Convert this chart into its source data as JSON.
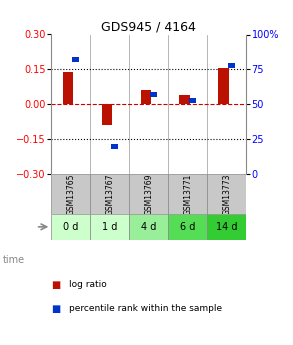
{
  "title": "GDS945 / 4164",
  "samples": [
    "GSM13765",
    "GSM13767",
    "GSM13769",
    "GSM13771",
    "GSM13773"
  ],
  "time_labels": [
    "0 d",
    "1 d",
    "4 d",
    "6 d",
    "14 d"
  ],
  "log_ratio": [
    0.14,
    -0.09,
    0.06,
    0.04,
    0.155
  ],
  "percentile_rank": [
    82,
    20,
    57,
    53,
    78
  ],
  "ylim_left": [
    -0.3,
    0.3
  ],
  "ylim_right": [
    0,
    100
  ],
  "yticks_left": [
    -0.3,
    -0.15,
    0,
    0.15,
    0.3
  ],
  "yticks_right": [
    0,
    25,
    50,
    75,
    100
  ],
  "log_ratio_color": "#bb1100",
  "percentile_color": "#0033cc",
  "hline_color": "#cc0000",
  "sample_bg_color": "#c8c8c8",
  "time_bg_colors": [
    "#ccffcc",
    "#ccffcc",
    "#99ee99",
    "#55dd55",
    "#33cc33"
  ],
  "legend_log_color": "#bb1100",
  "legend_pct_color": "#0033cc",
  "time_label": "time",
  "legend_log_text": "log ratio",
  "legend_pct_text": "percentile rank within the sample"
}
